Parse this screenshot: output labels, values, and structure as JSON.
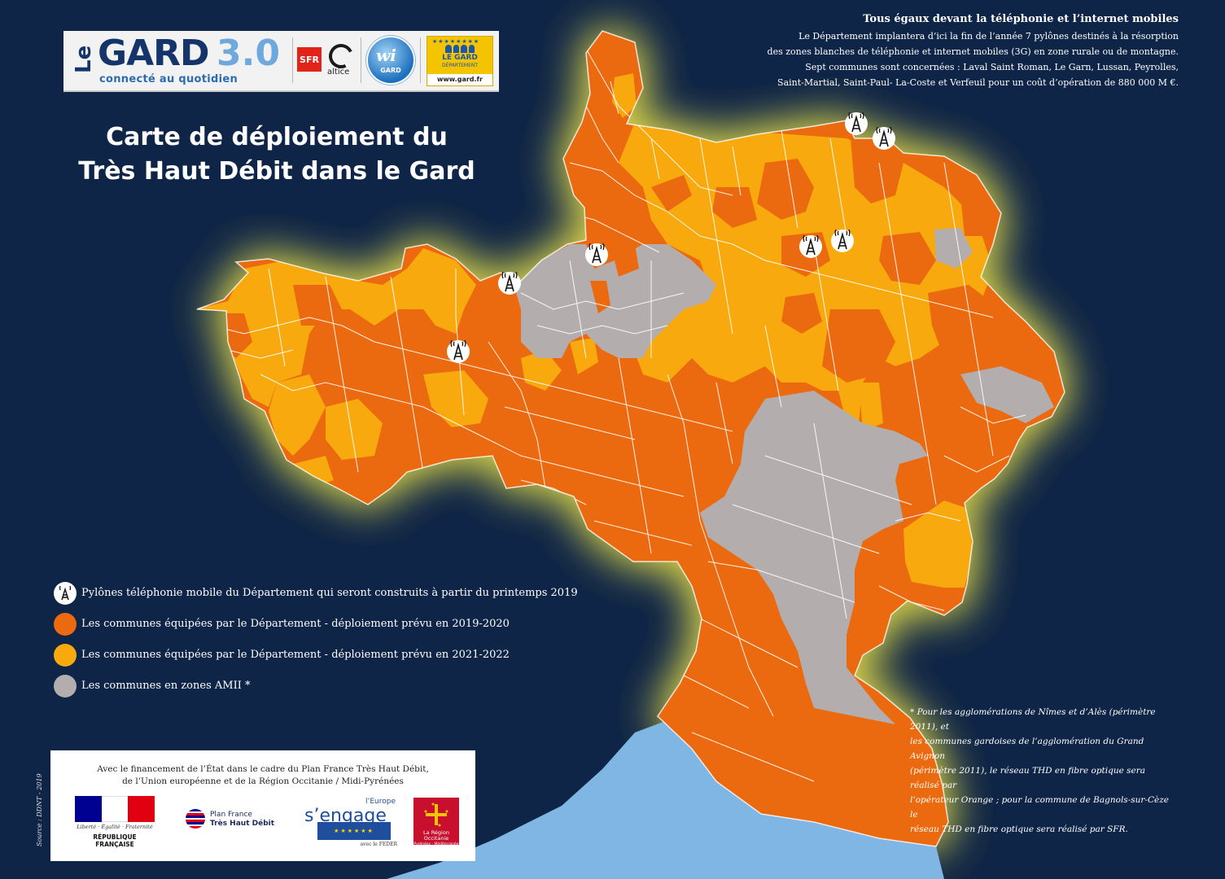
{
  "header": {
    "logo_le": "Le",
    "logo_gard": "GARD",
    "logo_version": "3.0",
    "logo_tagline": "connecté au quotidien",
    "sfr_label": "SFR",
    "altice_label": "altice",
    "wi_label": "wi",
    "wi_sub": "GARD",
    "dept_name_1": "LE GARD",
    "dept_name_2": "DÉPARTEMENT",
    "dept_url": "www.gard.fr",
    "title_line1": "Carte de déploiement du",
    "title_line2": "Très Haut Débit dans le Gard"
  },
  "info": {
    "heading": "Tous égaux devant la téléphonie et l’internet mobiles",
    "lines": [
      "Le Département implantera d’ici la fin de l’année 7 pylônes destinés à la résorption",
      "des zones blanches de téléphonie et internet mobiles (3G) en zone rurale ou de montagne.",
      "Sept communes sont concernées : Laval Saint Roman, Le Garn, Lussan, Peyrolles,",
      "Saint-Martial, Saint-Paul- La-Coste et Verfeuil pour un coût d’opération de 880 000 M €."
    ]
  },
  "legend": {
    "items": [
      {
        "label": "Pylônes téléphonie mobile du Département qui seront construits à partir du printemps 2019",
        "kind": "tower-icon",
        "color": "#ffffff"
      },
      {
        "label": "Les communes équipées par le Département - déploiement prévu en 2019-2020",
        "kind": "swatch",
        "color": "#ec6a0f"
      },
      {
        "label": "Les communes équipées par le Département - déploiement prévu en 2021-2022",
        "kind": "swatch",
        "color": "#f7a90d"
      },
      {
        "label": "Les communes en zones AMII *",
        "kind": "swatch",
        "color": "#b4adad"
      }
    ]
  },
  "footnote": {
    "lines": [
      "* Pour les agglomérations de Nîmes et d’Alès (périmètre 2011), et",
      "les communes gardoises de l’agglomération du Grand Avignon",
      "(périmètre 2011), le réseau THD en fibre optique sera réalisé par",
      "l’opérateur Orange ; pour la commune de Bagnols-sur-Cèze le",
      "réseau THD en fibre optique sera réalisé par SFR."
    ]
  },
  "source": "Source : DDNT - 2019",
  "funders": {
    "line1": "Avec le financement de l’État dans le cadre du Plan France Très Haut Débit,",
    "line2": "de l’Union européenne et de la Région Occitanie / Midi-Pyrénées",
    "rf_motto": "Liberté · Égalité · Fraternité",
    "rf_name": "RÉPUBLIQUE FRANÇAISE",
    "pfthd_1": "Plan France",
    "pfthd_2": "Très Haut Débit",
    "eu_top": "l’Europe",
    "eu_big": "s’engage",
    "eu_bottom": "avec le FEDER",
    "occ_line1": "La Région",
    "occ_line2": "Occitanie",
    "occ_line3": "Pyrénées - Méditerranée"
  },
  "map": {
    "colors": {
      "background": "#0f2547",
      "sea": "#7fb6e3",
      "glow": "#e8e04a",
      "orange": "#ec6a0f",
      "yellow": "#f7a90d",
      "gray": "#b4adad",
      "borders": "#ffffff"
    },
    "tower_count": 7
  }
}
